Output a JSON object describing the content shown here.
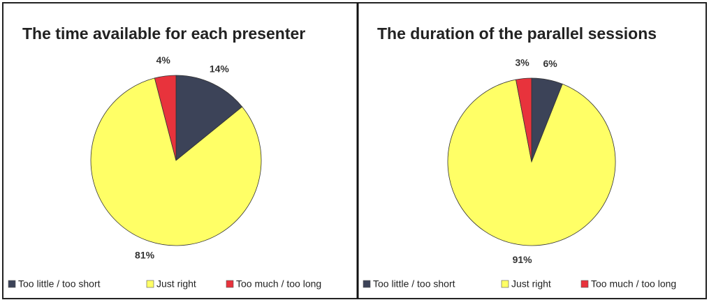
{
  "chart_data": [
    {
      "type": "pie",
      "title": "The time available for each presenter",
      "categories": [
        "Too little / too short",
        "Just right",
        "Too much / too long"
      ],
      "values": [
        14,
        81,
        4
      ],
      "value_labels": [
        "14%",
        "81%",
        "4%"
      ],
      "colors": [
        "#3c4358",
        "#ffff66",
        "#e8333c"
      ],
      "legend": "bottom"
    },
    {
      "type": "pie",
      "title": "The duration of the parallel sessions",
      "categories": [
        "Too little / too short",
        "Just right",
        "Too much / too long"
      ],
      "values": [
        6,
        91,
        3
      ],
      "value_labels": [
        "6%",
        "91%",
        "3%"
      ],
      "colors": [
        "#3c4358",
        "#ffff66",
        "#e8333c"
      ],
      "legend": "bottom"
    }
  ]
}
